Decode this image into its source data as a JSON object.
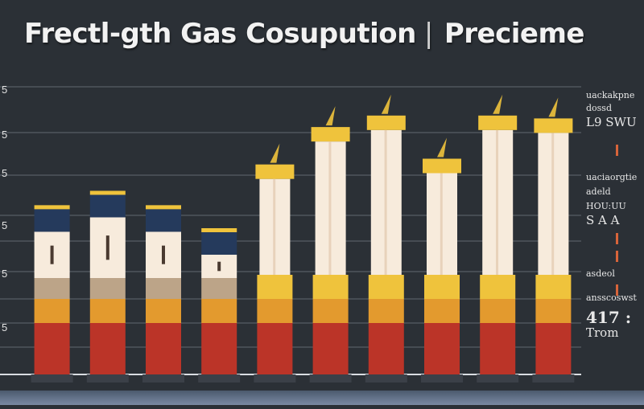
{
  "title": {
    "main": "Frectl-gth Gas Cosupution",
    "sep": "|",
    "sub": "Preciеme"
  },
  "side_labels": [
    {
      "text": "uackakpne",
      "size": "small"
    },
    {
      "text": "dossd",
      "size": "small"
    },
    {
      "text": "L9 SWU",
      "size": "mid"
    },
    {
      "text": "uaciaorgtie",
      "size": "small"
    },
    {
      "text": "adeld",
      "size": "small"
    },
    {
      "text": "HOU:UU",
      "size": "small"
    },
    {
      "text": "S A A",
      "size": "mid"
    },
    {
      "text": "asdeol",
      "size": "small"
    },
    {
      "text": "ansscoswst",
      "size": "small"
    },
    {
      "text": "417 :",
      "size": "big"
    },
    {
      "text": "Trom",
      "size": "mid"
    }
  ],
  "chart_data": {
    "type": "bar",
    "title": "Frectl-gth Gas Cosupution | Preciеme",
    "xlabel": "",
    "ylabel": "",
    "ylim": [
      0,
      100
    ],
    "grid": true,
    "y_tick_labels": [
      "5",
      "5",
      "5",
      "5",
      "5",
      "5"
    ],
    "categories": [
      "",
      "",
      "",
      "",
      "",
      "",
      "",
      "",
      "",
      ""
    ],
    "values": [
      58,
      63,
      58,
      50,
      73,
      86,
      90,
      75,
      90,
      89
    ],
    "colors": {
      "navy": "#253a5c",
      "cream": "#f7ebdc",
      "tan": "#bca488",
      "amber": "#e39a2e",
      "red": "#bb3428",
      "gold": "#efc33c",
      "grid": "#8f96a0",
      "axis": "#d9dde2"
    }
  }
}
